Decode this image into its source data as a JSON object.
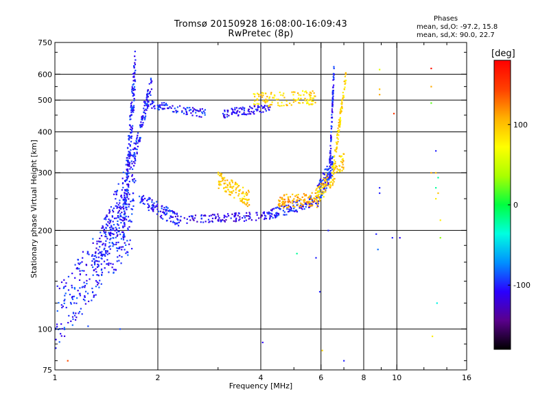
{
  "title_line1": "Tromsø 20150928 16:08:00-16:09:43",
  "title_line2": "RwPretec (8p)",
  "phase_stats": {
    "heading": "Phases",
    "o_line": "mean, sd,O: -97.2, 15.8",
    "x_line": "mean, sd,X: 90.0, 22.7"
  },
  "colorbar": {
    "unit_label": "[deg]",
    "ticks": [
      {
        "value": 100,
        "label": "100"
      },
      {
        "value": 0,
        "label": "0"
      },
      {
        "value": -100,
        "label": "-100"
      }
    ],
    "range": [
      -180,
      180
    ],
    "colormap": [
      "#000000",
      "#5a008c",
      "#2a00ff",
      "#0090ff",
      "#00ffe0",
      "#00ff40",
      "#aaff00",
      "#ffff00",
      "#ffb000",
      "#ff4000",
      "#ff0000"
    ]
  },
  "chart_data": {
    "type": "scatter",
    "title": "Tromsø 20150928 16:08:00-16:09:43",
    "subtitle": "RwPretec (8p)",
    "xlabel": "Frequency [MHz]",
    "ylabel": "Stationary phase Virtual Height [km]",
    "xscale": "log",
    "yscale": "log",
    "xlim": [
      1,
      16
    ],
    "ylim": [
      75,
      750
    ],
    "grid": true,
    "x_ticks": [
      1,
      2,
      4,
      6,
      8,
      10,
      16
    ],
    "x_tick_labels": [
      "1",
      "2",
      "4",
      "6",
      "8",
      "10",
      "16"
    ],
    "x_minor_ticks": [
      3,
      5,
      7,
      9,
      12,
      14
    ],
    "y_ticks": [
      75,
      100,
      200,
      300,
      400,
      500,
      600,
      750
    ],
    "y_tick_labels": [
      "75",
      "100",
      "200",
      "300",
      "400",
      "500",
      "600",
      "750"
    ],
    "y_minor_ticks": [
      80,
      90,
      120,
      140,
      160,
      180,
      250,
      350,
      450,
      550,
      700
    ],
    "x_gridlines": [
      2,
      4,
      6,
      8,
      10
    ],
    "y_gridlines": [
      100,
      200,
      300,
      400,
      500,
      600
    ],
    "series": [
      {
        "color_scale": "phase [deg]",
        "trace_segments": [
          {
            "f0": 1.0,
            "f1": 1.7,
            "h0": 108,
            "h1": 220,
            "phase": -100,
            "spread": 0.22
          },
          {
            "f0": 1.3,
            "f1": 1.72,
            "h0": 150,
            "h1": 320,
            "phase": -103,
            "spread": 0.18
          },
          {
            "f0": 1.58,
            "f1": 1.72,
            "h0": 200,
            "h1": 640,
            "phase": -100,
            "spread": 0.16
          },
          {
            "f0": 1.7,
            "f1": 1.92,
            "h0": 330,
            "h1": 570,
            "phase": -102,
            "spread": 0.06
          },
          {
            "f0": 1.75,
            "f1": 2.3,
            "h0": 250,
            "h1": 215,
            "phase": -102,
            "spread": 0.05
          },
          {
            "f0": 2.3,
            "f1": 4.2,
            "h0": 215,
            "h1": 222,
            "phase": -112,
            "spread": 0.03
          },
          {
            "f0": 4.2,
            "f1": 5.8,
            "h0": 222,
            "h1": 248,
            "phase": -103,
            "spread": 0.04
          },
          {
            "f0": 5.8,
            "f1": 6.5,
            "h0": 248,
            "h1": 320,
            "phase": -100,
            "spread": 0.08
          },
          {
            "f0": 6.35,
            "f1": 6.55,
            "h0": 300,
            "h1": 630,
            "phase": -102,
            "spread": 0.06
          },
          {
            "f0": 1.82,
            "f1": 2.75,
            "h0": 490,
            "h1": 455,
            "phase": -102,
            "spread": 0.03
          },
          {
            "f0": 3.1,
            "f1": 4.3,
            "h0": 455,
            "h1": 475,
            "phase": -108,
            "spread": 0.03
          },
          {
            "f0": 3.0,
            "f1": 3.7,
            "h0": 285,
            "h1": 250,
            "phase": 95,
            "spread": 0.06
          },
          {
            "f0": 4.5,
            "f1": 5.8,
            "h0": 245,
            "h1": 250,
            "phase": 110,
            "spread": 0.05
          },
          {
            "f0": 5.8,
            "f1": 7.0,
            "h0": 250,
            "h1": 330,
            "phase": 95,
            "spread": 0.07
          },
          {
            "f0": 6.5,
            "f1": 7.1,
            "h0": 300,
            "h1": 600,
            "phase": 90,
            "spread": 0.05
          },
          {
            "f0": 3.8,
            "f1": 5.8,
            "h0": 500,
            "h1": 510,
            "phase": 90,
            "spread": 0.05
          }
        ],
        "isolated_points": [
          {
            "f": 1.09,
            "h": 80,
            "phase": 140
          },
          {
            "f": 1.25,
            "h": 102,
            "phase": -90
          },
          {
            "f": 1.55,
            "h": 100,
            "phase": -90
          },
          {
            "f": 4.05,
            "h": 91,
            "phase": -110
          },
          {
            "f": 5.1,
            "h": 170,
            "phase": -20
          },
          {
            "f": 5.8,
            "h": 165,
            "phase": -100
          },
          {
            "f": 5.95,
            "h": 130,
            "phase": -100
          },
          {
            "f": 6.05,
            "h": 86,
            "phase": 90
          },
          {
            "f": 6.3,
            "h": 200,
            "phase": -100
          },
          {
            "f": 7.0,
            "h": 80,
            "phase": -100
          },
          {
            "f": 8.7,
            "h": 195,
            "phase": -100
          },
          {
            "f": 8.8,
            "h": 175,
            "phase": -80
          },
          {
            "f": 8.9,
            "h": 270,
            "phase": -100
          },
          {
            "f": 8.9,
            "h": 260,
            "phase": -100
          },
          {
            "f": 8.9,
            "h": 620,
            "phase": 60
          },
          {
            "f": 8.9,
            "h": 540,
            "phase": 100
          },
          {
            "f": 8.9,
            "h": 520,
            "phase": 110
          },
          {
            "f": 9.7,
            "h": 190,
            "phase": -100
          },
          {
            "f": 9.8,
            "h": 455,
            "phase": 150
          },
          {
            "f": 10.2,
            "h": 190,
            "phase": -110
          },
          {
            "f": 12.6,
            "h": 625,
            "phase": 170
          },
          {
            "f": 12.6,
            "h": 550,
            "phase": 110
          },
          {
            "f": 12.6,
            "h": 490,
            "phase": 20
          },
          {
            "f": 12.6,
            "h": 300,
            "phase": 110
          },
          {
            "f": 12.7,
            "h": 95,
            "phase": 80
          },
          {
            "f": 13.0,
            "h": 350,
            "phase": -100
          },
          {
            "f": 13.0,
            "h": 300,
            "phase": 100
          },
          {
            "f": 13.2,
            "h": 290,
            "phase": -20
          },
          {
            "f": 13.0,
            "h": 270,
            "phase": -20
          },
          {
            "f": 13.2,
            "h": 260,
            "phase": 100
          },
          {
            "f": 13.0,
            "h": 250,
            "phase": 80
          },
          {
            "f": 13.4,
            "h": 215,
            "phase": 80
          },
          {
            "f": 13.4,
            "h": 190,
            "phase": 30
          },
          {
            "f": 13.1,
            "h": 120,
            "phase": -40
          }
        ]
      }
    ]
  }
}
